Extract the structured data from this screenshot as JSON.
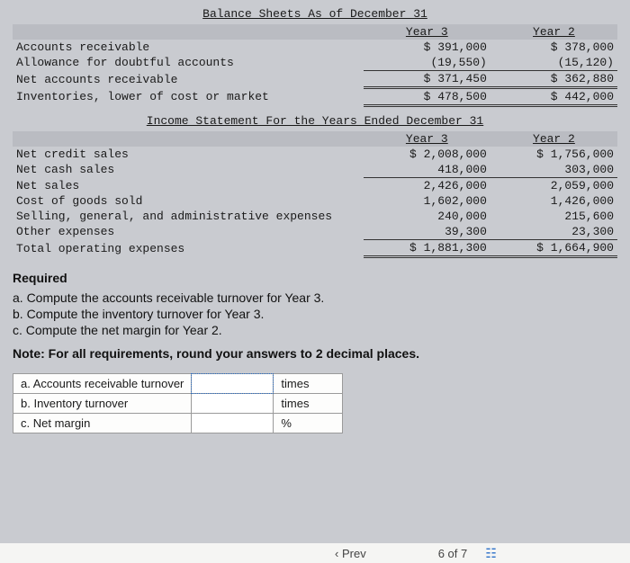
{
  "balance_sheet": {
    "title": "Balance Sheets As of December 31",
    "col_year3": "Year 3",
    "col_year2": "Year 2",
    "rows": {
      "ar_label": "Accounts receivable",
      "ar_y3": "$ 391,000",
      "ar_y2": "$ 378,000",
      "allow_label": "Allowance for doubtful accounts",
      "allow_y3": "(19,550)",
      "allow_y2": "(15,120)",
      "nar_label": "Net accounts receivable",
      "nar_y3": "$ 371,450",
      "nar_y2": "$ 362,880",
      "inv_label": "Inventories, lower of cost or market",
      "inv_y3": "$ 478,500",
      "inv_y2": "$ 442,000"
    }
  },
  "income_statement": {
    "title": "Income Statement For the Years Ended December 31",
    "col_year3": "Year 3",
    "col_year2": "Year 2",
    "rows": {
      "ncs_label": "Net credit sales",
      "ncs_y3": "$ 2,008,000",
      "ncs_y2": "$ 1,756,000",
      "ncash_label": "Net cash sales",
      "ncash_y3": "418,000",
      "ncash_y2": "303,000",
      "ns_label": "Net sales",
      "ns_y3": "2,426,000",
      "ns_y2": "2,059,000",
      "cogs_label": "Cost of goods sold",
      "cogs_y3": "1,602,000",
      "cogs_y2": "1,426,000",
      "sga_label": "Selling, general, and administrative expenses",
      "sga_y3": "240,000",
      "sga_y2": "215,600",
      "oth_label": "Other expenses",
      "oth_y3": "39,300",
      "oth_y2": "23,300",
      "tot_label": "Total operating expenses",
      "tot_y3": "$ 1,881,300",
      "tot_y2": "$ 1,664,900"
    }
  },
  "required": {
    "heading": "Required",
    "a": "a. Compute the accounts receivable turnover for Year 3.",
    "b": "b. Compute the inventory turnover for Year 3.",
    "c": "c. Compute the net margin for Year 2.",
    "note": "Note: For all requirements, round your answers to 2 decimal places."
  },
  "answers": {
    "a_label": "a. Accounts receivable turnover",
    "a_unit": "times",
    "b_label": "b. Inventory turnover",
    "b_unit": "times",
    "c_label": "c. Net margin",
    "c_unit": "%"
  },
  "footer": {
    "prev": "Prev",
    "pager": "6 of 7"
  }
}
